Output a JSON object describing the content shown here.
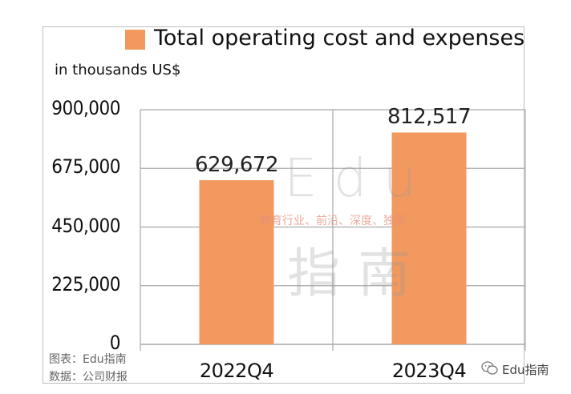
{
  "chart_data": {
    "type": "bar",
    "categories": [
      "2022Q4",
      "2023Q4"
    ],
    "series": [
      {
        "name": "Total operating cost and expenses",
        "values": [
          629672,
          812517
        ],
        "color": "#f2995f"
      }
    ],
    "data_labels": [
      "629,672",
      "812,517"
    ],
    "ylabel": "in thousands US$",
    "yticks": [
      0,
      225000,
      450000,
      675000,
      900000
    ],
    "ytick_labels": [
      "0",
      "225,000",
      "450,000",
      "675,000",
      "900,000"
    ],
    "ylim": [
      0,
      900000
    ],
    "grid": true,
    "legend": "top"
  },
  "source": {
    "chart_by": "图表：Edu指南",
    "data_from": "数据：公司财报"
  },
  "watermark": {
    "edu": "Edu",
    "tagline": "教育行业、前沿、深度、独家",
    "cn": "指南"
  },
  "brand": {
    "label": "Edu指南",
    "icon": "wechat-icon"
  },
  "colors": {
    "bar": "#f2995f",
    "grid": "#a9a9a9"
  }
}
